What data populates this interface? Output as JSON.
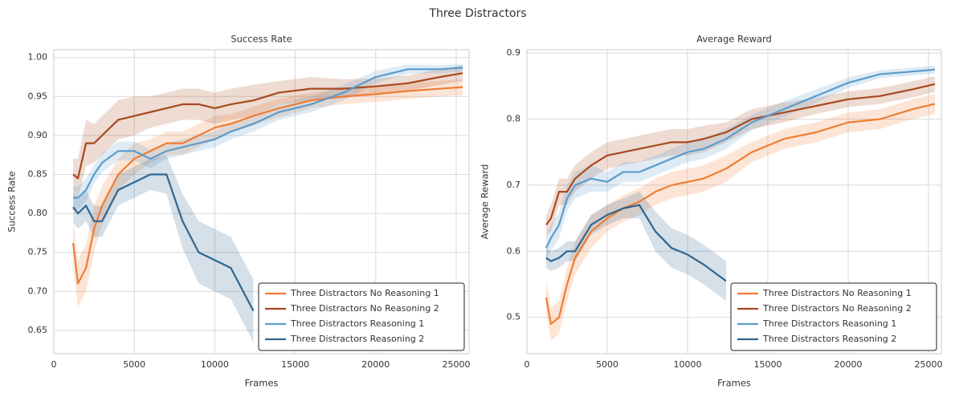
{
  "title": "Three Distractors",
  "chart_data": [
    {
      "type": "line",
      "title": "Success Rate",
      "xlabel": "Frames",
      "ylabel": "Success Rate",
      "x": [
        1200,
        1500,
        2000,
        2500,
        3000,
        4000,
        5000,
        6000,
        7000,
        8000,
        9000,
        10000,
        11000,
        12400,
        14000,
        16000,
        18000,
        20000,
        22000,
        24000,
        25400
      ],
      "series": [
        {
          "name": "Three Distractors No Reasoning 1",
          "color": "#ee7d33",
          "values": [
            0.762,
            0.71,
            0.73,
            0.78,
            0.81,
            0.85,
            0.87,
            0.88,
            0.89,
            0.89,
            0.9,
            0.91,
            0.915,
            0.925,
            0.935,
            0.945,
            0.95,
            0.953,
            0.957,
            0.96,
            0.962
          ],
          "error": [
            0.03,
            0.03,
            0.03,
            0.03,
            0.025,
            0.02,
            0.02,
            0.015,
            0.015,
            0.015,
            0.015,
            0.015,
            0.012,
            0.012,
            0.012,
            0.01,
            0.01,
            0.01,
            0.01,
            0.01,
            0.01
          ]
        },
        {
          "name": "Three Distractors No Reasoning 2",
          "color": "#a8491e",
          "values": [
            0.85,
            0.845,
            0.89,
            0.89,
            0.9,
            0.92,
            0.925,
            0.93,
            0.935,
            0.94,
            0.94,
            0.935,
            0.94,
            0.945,
            0.955,
            0.96,
            0.96,
            0.963,
            0.967,
            0.975,
            0.98
          ],
          "error": [
            0.02,
            0.025,
            0.03,
            0.025,
            0.025,
            0.025,
            0.025,
            0.02,
            0.02,
            0.02,
            0.02,
            0.02,
            0.02,
            0.02,
            0.015,
            0.015,
            0.012,
            0.01,
            0.01,
            0.01,
            0.01
          ]
        },
        {
          "name": "Three Distractors Reasoning 1",
          "color": "#5b9ccb",
          "values": [
            0.82,
            0.82,
            0.83,
            0.85,
            0.865,
            0.88,
            0.88,
            0.87,
            0.88,
            0.885,
            0.89,
            0.895,
            0.905,
            0.915,
            0.93,
            0.94,
            0.955,
            0.975,
            0.985,
            0.985,
            0.987
          ],
          "error": [
            0.015,
            0.015,
            0.015,
            0.012,
            0.012,
            0.012,
            0.012,
            0.012,
            0.01,
            0.01,
            0.01,
            0.01,
            0.01,
            0.01,
            0.01,
            0.01,
            0.01,
            0.008,
            0.006,
            0.005,
            0.005
          ]
        },
        {
          "name": "Three Distractors Reasoning 2",
          "color": "#2f6690",
          "values": [
            0.808,
            0.8,
            0.81,
            0.79,
            0.79,
            0.83,
            0.84,
            0.85,
            0.85,
            0.79,
            0.75,
            0.74,
            0.73,
            0.675,
            null,
            null,
            null,
            null,
            null,
            null,
            null
          ],
          "error": [
            0.02,
            0.02,
            0.02,
            0.02,
            0.02,
            0.02,
            0.02,
            0.02,
            0.025,
            0.035,
            0.04,
            0.04,
            0.04,
            0.04,
            null,
            null,
            null,
            null,
            null,
            null,
            null
          ]
        }
      ],
      "xlim": [
        0,
        25800
      ],
      "ylim": [
        0.62,
        1.01
      ],
      "xticks": [
        0,
        5000,
        10000,
        15000,
        20000,
        25000
      ],
      "yticks": [
        0.65,
        {
          "value": 0.7,
          "label": "0.70"
        },
        0.75,
        {
          "value": 0.8,
          "label": "0.80"
        },
        0.85,
        {
          "value": 0.9,
          "label": "0.90"
        },
        0.95,
        {
          "value": 1.0,
          "label": "1.00"
        }
      ],
      "grid": true,
      "legend": "lower right"
    },
    {
      "type": "line",
      "title": "Average Reward",
      "xlabel": "Frames",
      "ylabel": "Average Reward",
      "x": [
        1200,
        1500,
        2000,
        2500,
        3000,
        4000,
        5000,
        6000,
        7000,
        8000,
        9000,
        10000,
        11000,
        12400,
        14000,
        16000,
        18000,
        20000,
        22000,
        24000,
        25400
      ],
      "series": [
        {
          "name": "Three Distractors No Reasoning 1",
          "color": "#ee7d33",
          "values": [
            0.53,
            0.49,
            0.5,
            0.55,
            0.59,
            0.63,
            0.65,
            0.665,
            0.675,
            0.69,
            0.7,
            0.705,
            0.71,
            0.725,
            0.75,
            0.77,
            0.78,
            0.795,
            0.8,
            0.815,
            0.823
          ],
          "error": [
            0.025,
            0.025,
            0.025,
            0.025,
            0.025,
            0.025,
            0.02,
            0.02,
            0.02,
            0.02,
            0.02,
            0.02,
            0.02,
            0.02,
            0.015,
            0.015,
            0.015,
            0.015,
            0.015,
            0.015,
            0.015
          ]
        },
        {
          "name": "Three Distractors No Reasoning 2",
          "color": "#a8491e",
          "values": [
            0.64,
            0.65,
            0.69,
            0.69,
            0.71,
            0.73,
            0.745,
            0.75,
            0.755,
            0.76,
            0.765,
            0.765,
            0.77,
            0.78,
            0.8,
            0.81,
            0.82,
            0.83,
            0.835,
            0.845,
            0.853
          ],
          "error": [
            0.015,
            0.02,
            0.02,
            0.02,
            0.02,
            0.02,
            0.02,
            0.02,
            0.02,
            0.02,
            0.02,
            0.02,
            0.02,
            0.015,
            0.015,
            0.015,
            0.012,
            0.012,
            0.012,
            0.012,
            0.012
          ]
        },
        {
          "name": "Three Distractors Reasoning 1",
          "color": "#5b9ccb",
          "values": [
            0.605,
            0.62,
            0.64,
            0.68,
            0.7,
            0.71,
            0.705,
            0.72,
            0.72,
            0.73,
            0.74,
            0.75,
            0.755,
            0.77,
            0.795,
            0.815,
            0.835,
            0.855,
            0.868,
            0.872,
            0.875
          ],
          "error": [
            0.02,
            0.02,
            0.02,
            0.02,
            0.02,
            0.02,
            0.015,
            0.015,
            0.015,
            0.015,
            0.015,
            0.015,
            0.015,
            0.015,
            0.012,
            0.012,
            0.01,
            0.008,
            0.006,
            0.006,
            0.006
          ]
        },
        {
          "name": "Three Distractors Reasoning 2",
          "color": "#2f6690",
          "values": [
            0.59,
            0.585,
            0.59,
            0.6,
            0.6,
            0.64,
            0.655,
            0.665,
            0.67,
            0.63,
            0.605,
            0.595,
            0.58,
            0.555,
            null,
            null,
            null,
            null,
            null,
            null,
            null
          ],
          "error": [
            0.015,
            0.015,
            0.015,
            0.015,
            0.015,
            0.015,
            0.015,
            0.015,
            0.02,
            0.03,
            0.03,
            0.03,
            0.03,
            0.03,
            null,
            null,
            null,
            null,
            null,
            null,
            null
          ]
        }
      ],
      "xlim": [
        0,
        25800
      ],
      "ylim": [
        0.445,
        0.905
      ],
      "xticks": [
        0,
        5000,
        10000,
        15000,
        20000,
        25000
      ],
      "yticks": [
        0.5,
        0.6,
        0.7,
        0.8,
        0.9
      ],
      "grid": true,
      "legend": "lower right"
    }
  ]
}
